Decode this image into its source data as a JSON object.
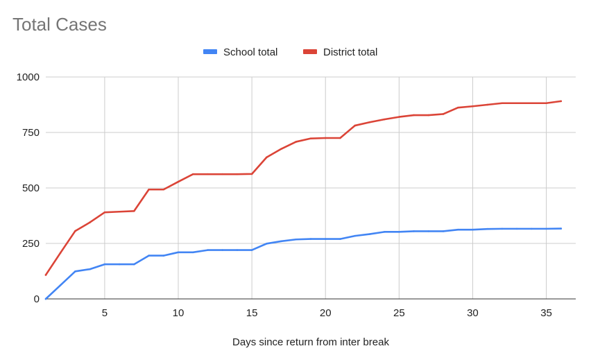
{
  "chart_data": {
    "type": "line",
    "title": "Total Cases",
    "xlabel": "Days since return from inter break",
    "ylabel": "",
    "xlim": [
      1,
      37
    ],
    "ylim": [
      0,
      1000
    ],
    "x_ticks": [
      5,
      10,
      15,
      20,
      25,
      30,
      35
    ],
    "y_ticks": [
      0,
      250,
      500,
      750,
      1000
    ],
    "y_tick_labels": [
      "0",
      "250",
      "500",
      "750",
      "1000"
    ],
    "grid": true,
    "legend_position": "top",
    "x": [
      1,
      2,
      3,
      4,
      5,
      6,
      7,
      8,
      9,
      10,
      11,
      12,
      13,
      14,
      15,
      16,
      17,
      18,
      19,
      20,
      21,
      22,
      23,
      24,
      25,
      26,
      27,
      28,
      29,
      30,
      31,
      32,
      33,
      34,
      35,
      36
    ],
    "series": [
      {
        "name": "School total",
        "color": "#4285f4",
        "values": [
          0,
          62,
          124,
          134,
          156,
          156,
          156,
          195,
          195,
          210,
          210,
          220,
          220,
          220,
          220,
          249,
          260,
          268,
          270,
          270,
          270,
          284,
          292,
          302,
          302,
          305,
          305,
          305,
          312,
          312,
          315,
          316,
          316,
          316,
          316,
          317
        ]
      },
      {
        "name": "District total",
        "color": "#db4437",
        "values": [
          108,
          208,
          306,
          345,
          390,
          393,
          396,
          493,
          493,
          528,
          562,
          562,
          562,
          562,
          563,
          638,
          676,
          708,
          723,
          725,
          725,
          781,
          796,
          809,
          820,
          828,
          828,
          833,
          862,
          868,
          875,
          882,
          882,
          882,
          882,
          891
        ]
      }
    ]
  }
}
